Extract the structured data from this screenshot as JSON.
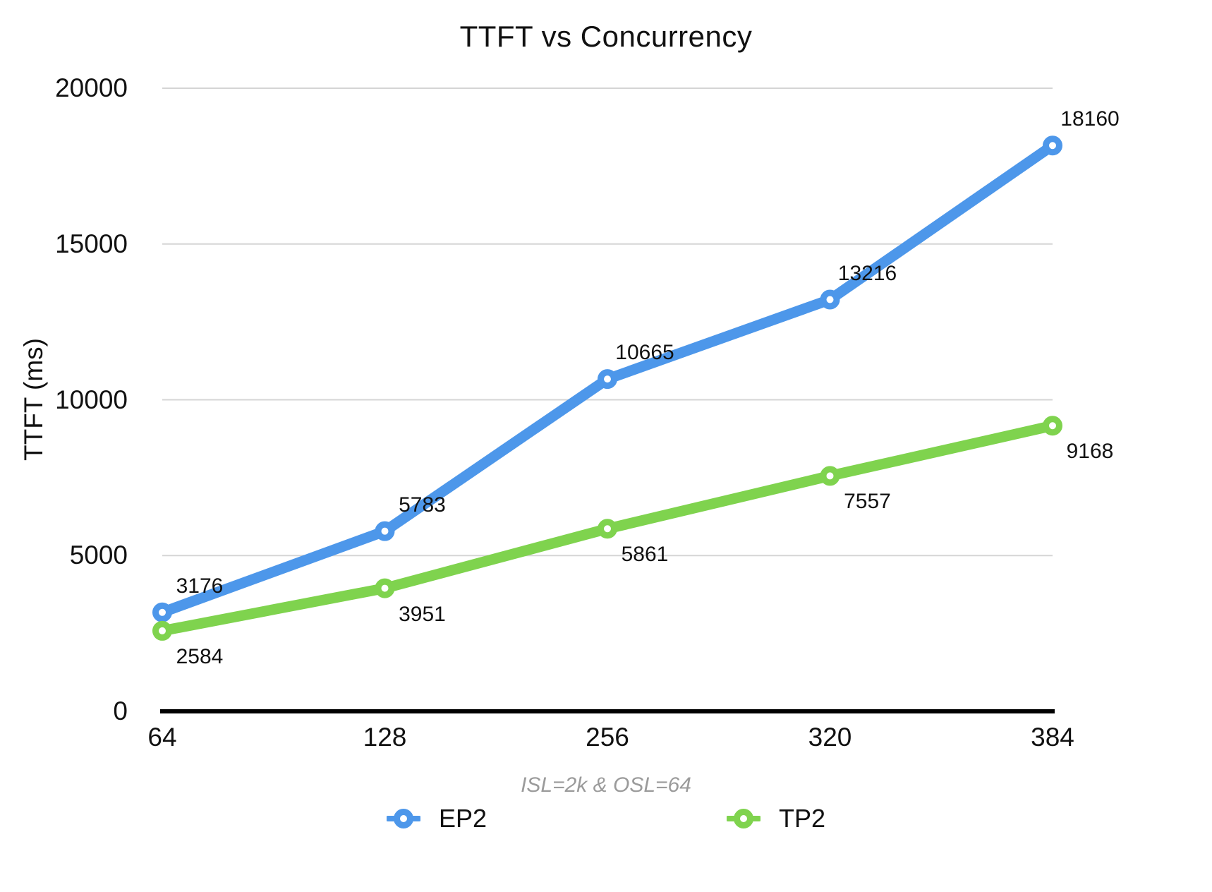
{
  "chart_data": {
    "type": "line",
    "title": "TTFT vs Concurrency",
    "ylabel": "TTFT (ms)",
    "xlabel": "ISL=2k & OSL=64",
    "categories": [
      "64",
      "128",
      "256",
      "320",
      "384"
    ],
    "series": [
      {
        "name": "EP2",
        "values": [
          3176,
          5783,
          10665,
          13216,
          18160
        ],
        "color": "#4d97ea",
        "label_position": "above"
      },
      {
        "name": "TP2",
        "values": [
          2584,
          3951,
          5861,
          7557,
          9168
        ],
        "color": "#7fd34e",
        "label_position": "below"
      }
    ],
    "ylim": [
      0,
      20000
    ],
    "yticks": [
      0,
      5000,
      10000,
      15000,
      20000
    ],
    "grid": "horizontal",
    "legend_position": "bottom",
    "colors": {
      "gridline": "#d5d5d5",
      "axis": "#000000",
      "text": "#111111",
      "subtitle_text": "#9b9b9b"
    }
  }
}
